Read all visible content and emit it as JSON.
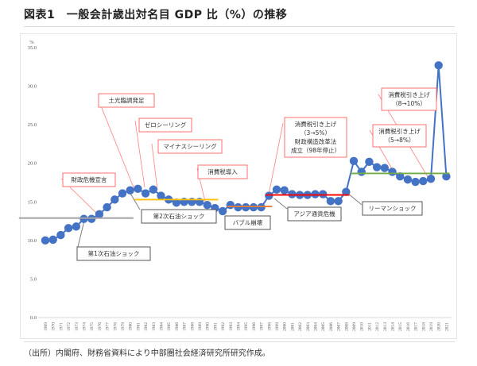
{
  "title": "図表1　一般会計歳出対名目 GDP 比（%）の推移",
  "footer": "（出所）内閣府、財務省資料により中部圏社会経済研究所研究作成。",
  "chart_data": {
    "type": "line",
    "title": "図表1　一般会計歳出対名目 GDP 比（%）の推移",
    "ylabel": "%",
    "xlabel": "",
    "ylim": [
      0,
      35
    ],
    "yticks": [
      "0.0",
      "5.0",
      "10.0",
      "15.0",
      "20.0",
      "25.0",
      "30.0",
      "35.0"
    ],
    "ytick_values": [
      0,
      5,
      10,
      15,
      20,
      25,
      30,
      35
    ],
    "grid": false,
    "series_color": "#4472c4",
    "x": [
      "1969",
      "1970",
      "1971",
      "1972",
      "1973",
      "1974",
      "1975",
      "1976",
      "1977",
      "1978",
      "1979",
      "1980",
      "1981",
      "1982",
      "1983",
      "1984",
      "1985",
      "1986",
      "1987",
      "1988",
      "1989",
      "1990",
      "1991",
      "1992",
      "1993",
      "1994",
      "1995",
      "1996",
      "1997",
      "1998",
      "1999",
      "2000",
      "2001",
      "2002",
      "2003",
      "2004",
      "2005",
      "2006",
      "2007",
      "2008",
      "2009",
      "2010",
      "2011",
      "2012",
      "2013",
      "2014",
      "2015",
      "2016",
      "2017",
      "2018",
      "2019",
      "2020",
      "2021"
    ],
    "series": [
      {
        "name": "一般会計歳出対名目GDP比",
        "values": [
          10.0,
          10.1,
          10.7,
          11.6,
          11.8,
          12.8,
          12.8,
          13.4,
          14.3,
          15.3,
          16.1,
          16.5,
          16.7,
          16.1,
          16.6,
          15.8,
          15.3,
          14.9,
          15.0,
          15.0,
          15.0,
          14.6,
          14.2,
          13.8,
          14.6,
          14.3,
          14.3,
          14.3,
          14.3,
          15.8,
          16.6,
          16.5,
          16.0,
          15.9,
          15.9,
          16.0,
          16.0,
          15.1,
          15.1,
          16.3,
          20.3,
          18.9,
          20.2,
          19.5,
          19.4,
          18.9,
          18.3,
          17.9,
          17.6,
          17.7,
          18.0,
          32.7,
          18.3
        ]
      }
    ],
    "reference_lines": [
      {
        "name": "gray-average",
        "value": 12.9,
        "from": "1966",
        "to": "1980",
        "color": "#a6a6a6"
      },
      {
        "name": "yellow-average",
        "value": 15.3,
        "from": "1981",
        "to": "1991",
        "color": "#ffc000"
      },
      {
        "name": "orange-average",
        "value": 14.4,
        "from": "1993",
        "to": "1998",
        "color": "#ed7d31"
      },
      {
        "name": "red-average",
        "value": 15.9,
        "from": "1998",
        "to": "2008",
        "color": "#ff0000"
      },
      {
        "name": "green-average",
        "value": 18.7,
        "from": "2009",
        "to": "2021",
        "color": "#70ad47"
      }
    ],
    "annotations": [
      {
        "id": "ann-1",
        "lines": [
          "土光臨調発足"
        ],
        "border": "red",
        "target": "1981"
      },
      {
        "id": "ann-2",
        "lines": [
          "ゼロシーリング"
        ],
        "border": "red",
        "target": "1982"
      },
      {
        "id": "ann-3",
        "lines": [
          "マイナスシーリング"
        ],
        "border": "red",
        "target": "1984"
      },
      {
        "id": "ann-4",
        "lines": [
          "消費税導入"
        ],
        "border": "red",
        "target": "1989"
      },
      {
        "id": "ann-5",
        "lines": [
          "財政危機宣言"
        ],
        "border": "red",
        "target": "1975"
      },
      {
        "id": "ann-6",
        "lines": [
          "消費税引き上げ",
          "（3→5%）",
          "財政構造改革法",
          "成立（98年停止）"
        ],
        "border": "red",
        "target": "1997"
      },
      {
        "id": "ann-7",
        "lines": [
          "消費税引き上げ",
          "（8→10%）"
        ],
        "border": "red",
        "target": "2019"
      },
      {
        "id": "ann-8",
        "lines": [
          "消費税引き上げ",
          "（5→8%）"
        ],
        "border": "red",
        "target": "2014"
      },
      {
        "id": "ann-9",
        "lines": [
          "第1次石油ショック"
        ],
        "border": "gray",
        "target": "1973"
      },
      {
        "id": "ann-10",
        "lines": [
          "第2次石油ショック"
        ],
        "border": "gray",
        "target": "1979"
      },
      {
        "id": "ann-11",
        "lines": [
          "バブル崩壊"
        ],
        "border": "gray",
        "target": "1991"
      },
      {
        "id": "ann-12",
        "lines": [
          "アジア通貨危機"
        ],
        "border": "gray",
        "target": "1998"
      },
      {
        "id": "ann-13",
        "lines": [
          "リーマンショック"
        ],
        "border": "gray",
        "target": "2008"
      }
    ]
  }
}
